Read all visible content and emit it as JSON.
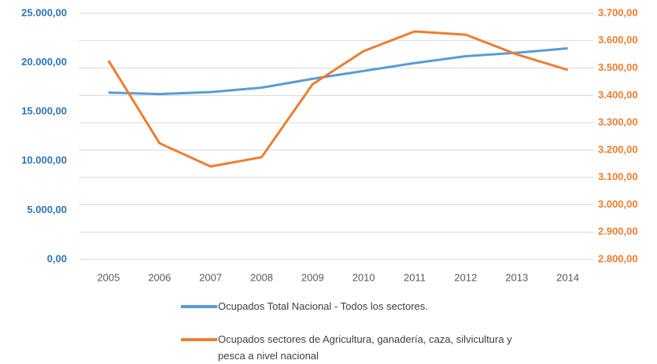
{
  "chart_data": {
    "type": "line",
    "categories": [
      "2005",
      "2006",
      "2007",
      "2008",
      "2009",
      "2010",
      "2011",
      "2012",
      "2013",
      "2014"
    ],
    "series": [
      {
        "name": "Ocupados Total Nacional - Todos los sectores.",
        "color": "#5b9bd5",
        "axis": "y",
        "values": [
          16950,
          16800,
          17000,
          17450,
          18350,
          19150,
          19950,
          20650,
          21000,
          21450
        ]
      },
      {
        "name": "Ocupados sectores de Agricultura, ganadería, caza, silvicultura y pesca a nivel nacional",
        "color": "#ed7d31",
        "axis": "y2",
        "values": [
          3527,
          3225,
          3140,
          3174,
          3441,
          3562,
          3634,
          3622,
          3550,
          3493
        ]
      }
    ],
    "ylim": [
      0,
      25000
    ],
    "yticks": [
      {
        "value": 0,
        "label": "0,00"
      },
      {
        "value": 5000,
        "label": "5.000,00"
      },
      {
        "value": 10000,
        "label": "10.000,00"
      },
      {
        "value": 15000,
        "label": "15.000,00"
      },
      {
        "value": 20000,
        "label": "20.000,00"
      },
      {
        "value": 25000,
        "label": "25.000,00"
      }
    ],
    "y2lim": [
      2800,
      3700
    ],
    "y2ticks": [
      {
        "value": 2800,
        "label": "2.800,00"
      },
      {
        "value": 2900,
        "label": "2.900,00"
      },
      {
        "value": 3000,
        "label": "3.000,00"
      },
      {
        "value": 3100,
        "label": "3.100,00"
      },
      {
        "value": 3200,
        "label": "3.200,00"
      },
      {
        "value": 3300,
        "label": "3.300,00"
      },
      {
        "value": 3400,
        "label": "3.400,00"
      },
      {
        "value": 3500,
        "label": "3.500,00"
      },
      {
        "value": 3600,
        "label": "3.600,00"
      },
      {
        "value": 3700,
        "label": "3.700,00"
      }
    ],
    "grid": true,
    "legend": "bottom"
  }
}
